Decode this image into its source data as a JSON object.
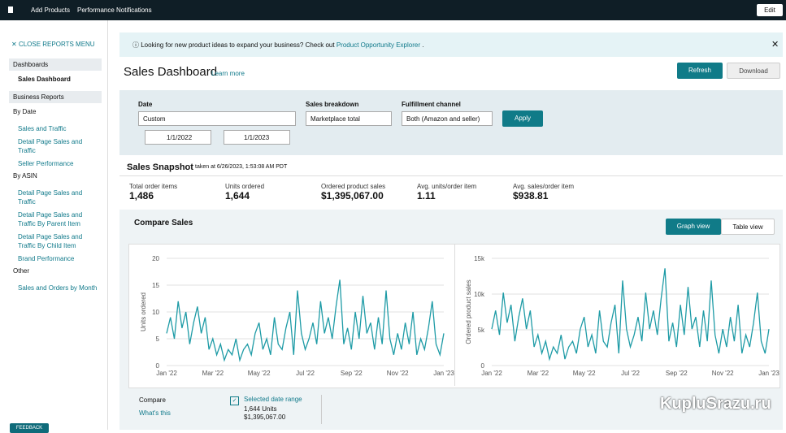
{
  "top_bar": {
    "links": [
      "Add Products",
      "Performance Notifications"
    ],
    "edit": "Edit"
  },
  "sidebar": {
    "close": "CLOSE REPORTS MENU",
    "section1": "Dashboards",
    "item1": "Sales Dashboard",
    "section2": "Business Reports",
    "items": [
      "By Date",
      "Sales and Traffic",
      "Detail Page Sales and Traffic",
      "Seller Performance",
      "By ASIN",
      "Detail Page Sales and Traffic",
      "Detail Page Sales and Traffic By Parent Item",
      "Detail Page Sales and Traffic By Child Item",
      "Brand Performance",
      "Other",
      "Sales and Orders by Month"
    ],
    "feedback": "FEEDBACK"
  },
  "banner": {
    "text": "Looking for new product ideas to expand your business? Check out",
    "link": "Product Opportunity Explorer",
    "end": "."
  },
  "header": {
    "title": "Sales Dashboard",
    "learn": "Learn more",
    "refresh": "Refresh",
    "download": "Download"
  },
  "filters": {
    "date_label": "Date",
    "date_value": "Custom",
    "start": "1/1/2022",
    "end": "1/1/2023",
    "breakdown_label": "Sales breakdown",
    "breakdown_value": "Marketplace total",
    "channel_label": "Fulfillment channel",
    "channel_value": "Both (Amazon and seller)",
    "apply": "Apply"
  },
  "snapshot": {
    "title": "Sales Snapshot",
    "taken": "taken at 6/26/2023, 1:53:08 AM PDT",
    "metrics": [
      {
        "label": "Total order items",
        "value": "1,486"
      },
      {
        "label": "Units ordered",
        "value": "1,644"
      },
      {
        "label": "Ordered product sales",
        "value": "$1,395,067.00"
      },
      {
        "label": "Avg. units/order item",
        "value": "1.11"
      },
      {
        "label": "Avg. sales/order item",
        "value": "$938.81"
      }
    ]
  },
  "compare": {
    "title": "Compare Sales",
    "graph_view": "Graph view",
    "table_view": "Table view",
    "compare_label": "Compare",
    "whats_this": "What's this",
    "selected": "Selected date range",
    "units": "1,644 Units",
    "sales": "$1,395,067.00"
  },
  "watermark": "KupluSrazu.ru",
  "chart_data": [
    {
      "type": "line",
      "y_label": "Units ordered",
      "color": "#1e9ba6",
      "ylim": [
        0,
        20
      ],
      "yticks": [
        0,
        5,
        10,
        15,
        20
      ],
      "grid": true,
      "categories": [
        "Jan '22",
        null,
        null,
        null,
        null,
        null,
        null,
        null,
        null,
        null,
        null,
        null,
        "Mar '22",
        null,
        null,
        null,
        null,
        null,
        null,
        null,
        null,
        null,
        null,
        null,
        "May '22",
        null,
        null,
        null,
        null,
        null,
        null,
        null,
        null,
        null,
        null,
        null,
        "Jul '22",
        null,
        null,
        null,
        null,
        null,
        null,
        null,
        null,
        null,
        null,
        null,
        "Sep '22",
        null,
        null,
        null,
        null,
        null,
        null,
        null,
        null,
        null,
        null,
        null,
        "Nov '22",
        null,
        null,
        null,
        null,
        null,
        null,
        null,
        null,
        null,
        null,
        null,
        "Jan '23"
      ],
      "values": [
        6,
        9,
        5,
        12,
        7,
        10,
        4,
        8,
        11,
        6,
        9,
        3,
        5,
        2,
        4,
        1,
        3,
        2,
        5,
        1,
        3,
        4,
        2,
        6,
        8,
        3,
        5,
        2,
        9,
        4,
        3,
        7,
        10,
        2,
        14,
        6,
        3,
        5,
        8,
        4,
        12,
        6,
        9,
        5,
        11,
        16,
        4,
        7,
        3,
        10,
        5,
        13,
        6,
        8,
        3,
        9,
        4,
        14,
        5,
        2,
        6,
        3,
        8,
        4,
        10,
        2,
        5,
        3,
        7,
        12,
        4,
        2,
        6
      ]
    },
    {
      "type": "line",
      "y_label": "Ordered product sales",
      "color": "#1e9ba6",
      "ylim": [
        0,
        15000
      ],
      "yticks": [
        0,
        {
          "value": 5000,
          "label": "5k"
        },
        {
          "value": 10000,
          "label": "10k"
        },
        {
          "value": 15000,
          "label": "15k"
        }
      ],
      "grid": true,
      "categories": [
        "Jan '22",
        null,
        null,
        null,
        null,
        null,
        null,
        null,
        null,
        null,
        null,
        null,
        "Mar '22",
        null,
        null,
        null,
        null,
        null,
        null,
        null,
        null,
        null,
        null,
        null,
        "May '22",
        null,
        null,
        null,
        null,
        null,
        null,
        null,
        null,
        null,
        null,
        null,
        "Jul '22",
        null,
        null,
        null,
        null,
        null,
        null,
        null,
        null,
        null,
        null,
        null,
        "Sep '22",
        null,
        null,
        null,
        null,
        null,
        null,
        null,
        null,
        null,
        null,
        null,
        "Nov '22",
        null,
        null,
        null,
        null,
        null,
        null,
        null,
        null,
        null,
        null,
        null,
        "Jan '23"
      ],
      "values": [
        5100,
        7700,
        4300,
        10200,
        6000,
        8500,
        3400,
        6800,
        9400,
        5100,
        7700,
        2600,
        4300,
        1700,
        3400,
        900,
        2600,
        1700,
        4300,
        900,
        2600,
        3400,
        1700,
        5100,
        6800,
        2600,
        4300,
        1700,
        7700,
        3400,
        2600,
        6000,
        8500,
        1700,
        11900,
        5100,
        2600,
        4300,
        6800,
        3400,
        10200,
        5100,
        7700,
        4300,
        9400,
        13600,
        3400,
        6000,
        2600,
        8500,
        4300,
        11000,
        5100,
        6800,
        2600,
        7700,
        3400,
        11900,
        4300,
        1700,
        5100,
        2600,
        6800,
        3400,
        8500,
        1700,
        4300,
        2600,
        6000,
        10200,
        3400,
        1700,
        5100
      ]
    }
  ]
}
